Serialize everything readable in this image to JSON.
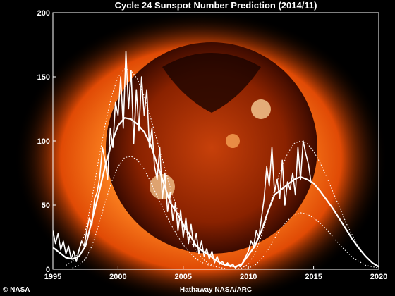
{
  "chart_data": {
    "type": "line",
    "title": "Cycle 24 Sunspot Number Prediction (2014/11)",
    "xlabel": "",
    "ylabel": "",
    "xlim": [
      1995,
      2020
    ],
    "ylim": [
      0,
      200
    ],
    "x_ticks": [
      "1995",
      "2000",
      "2005",
      "2010",
      "2015",
      "2020"
    ],
    "y_ticks": [
      "0",
      "50",
      "100",
      "150",
      "200"
    ],
    "grid": false,
    "series": [
      {
        "role": "monthly-observed",
        "color": "#ffffff",
        "x": [
          1995.0,
          1995.2,
          1995.4,
          1995.6,
          1995.8,
          1996.0,
          1996.2,
          1996.4,
          1996.6,
          1996.8,
          1997.0,
          1997.2,
          1997.4,
          1997.6,
          1997.8,
          1998.0,
          1998.2,
          1998.4,
          1998.6,
          1998.8,
          1999.0,
          1999.2,
          1999.4,
          1999.6,
          1999.8,
          2000.0,
          2000.2,
          2000.4,
          2000.6,
          2000.8,
          2001.0,
          2001.2,
          2001.4,
          2001.6,
          2001.8,
          2002.0,
          2002.2,
          2002.4,
          2002.6,
          2002.8,
          2003.0,
          2003.2,
          2003.4,
          2003.6,
          2003.8,
          2004.0,
          2004.2,
          2004.4,
          2004.6,
          2004.8,
          2005.0,
          2005.2,
          2005.4,
          2005.6,
          2005.8,
          2006.0,
          2006.2,
          2006.4,
          2006.6,
          2006.8,
          2007.0,
          2007.2,
          2007.4,
          2007.6,
          2007.8,
          2008.0,
          2008.2,
          2008.4,
          2008.6,
          2008.8,
          2009.0,
          2009.2,
          2009.4,
          2009.6,
          2009.8,
          2010.0,
          2010.2,
          2010.4,
          2010.6,
          2010.8,
          2011.0,
          2011.2,
          2011.4,
          2011.6,
          2011.8,
          2012.0,
          2012.2,
          2012.4,
          2012.6,
          2012.8,
          2013.0,
          2013.2,
          2013.4,
          2013.6,
          2013.8,
          2014.0,
          2014.2,
          2014.4,
          2014.6,
          2014.8
        ],
        "values": [
          30,
          20,
          28,
          15,
          22,
          12,
          18,
          8,
          14,
          6,
          15,
          22,
          18,
          30,
          40,
          35,
          55,
          60,
          72,
          95,
          85,
          70,
          110,
          95,
          130,
          120,
          150,
          110,
          170,
          125,
          155,
          98,
          140,
          108,
          150,
          120,
          140,
          95,
          110,
          80,
          70,
          95,
          55,
          75,
          45,
          60,
          38,
          52,
          30,
          46,
          25,
          40,
          20,
          35,
          18,
          28,
          12,
          22,
          10,
          16,
          8,
          14,
          5,
          10,
          4,
          6,
          3,
          5,
          2,
          4,
          1,
          3,
          2,
          6,
          10,
          14,
          22,
          18,
          30,
          25,
          40,
          55,
          80,
          65,
          95,
          60,
          70,
          55,
          85,
          50,
          68,
          62,
          75,
          58,
          95,
          70,
          100,
          90,
          82,
          68
        ]
      },
      {
        "role": "smoothed-observed",
        "color": "#ffffff",
        "x": [
          1995.0,
          1995.5,
          1996.0,
          1996.5,
          1997.0,
          1997.5,
          1998.0,
          1998.5,
          1999.0,
          1999.5,
          2000.0,
          2000.5,
          2001.0,
          2001.5,
          2002.0,
          2002.5,
          2003.0,
          2003.5,
          2004.0,
          2004.5,
          2005.0,
          2005.5,
          2006.0,
          2006.5,
          2007.0,
          2007.5,
          2008.0,
          2008.5,
          2009.0,
          2009.5,
          2010.0,
          2010.5,
          2011.0,
          2011.5,
          2012.0,
          2012.5,
          2013.0,
          2013.5,
          2014.0
        ],
        "values": [
          17,
          13,
          9,
          8,
          10,
          18,
          38,
          58,
          80,
          98,
          112,
          118,
          117,
          113,
          107,
          97,
          82,
          67,
          52,
          44,
          35,
          27,
          18,
          14,
          11,
          7,
          4,
          3,
          2,
          4,
          11,
          18,
          30,
          45,
          58,
          62,
          66,
          70,
          72
        ]
      },
      {
        "role": "prediction",
        "color": "#ffffff",
        "x": [
          2014.0,
          2014.5,
          2015.0,
          2015.5,
          2016.0,
          2016.5,
          2017.0,
          2017.5,
          2018.0,
          2018.5,
          2019.0,
          2019.5,
          2020.0
        ],
        "values": [
          72,
          70,
          67,
          61,
          54,
          47,
          39,
          31,
          23,
          16,
          10,
          5,
          2
        ]
      },
      {
        "role": "cycle23-envelope-upper",
        "color": "#ffffff",
        "x": [
          1996.0,
          1996.5,
          1997.0,
          1997.5,
          1998.0,
          1998.5,
          1999.0,
          1999.5,
          2000.0,
          2000.5,
          2001.0,
          2001.5,
          2002.0,
          2002.5,
          2003.0,
          2003.5,
          2004.0,
          2004.5,
          2005.0,
          2005.5,
          2006.0,
          2006.5,
          2007.0,
          2007.5,
          2008.0
        ],
        "values": [
          3,
          6,
          14,
          30,
          55,
          85,
          112,
          135,
          150,
          156,
          155,
          148,
          135,
          118,
          100,
          82,
          64,
          48,
          34,
          23,
          14,
          8,
          4,
          2,
          1
        ]
      },
      {
        "role": "cycle23-envelope-lower",
        "color": "#ffffff",
        "x": [
          1996.5,
          1997.0,
          1997.5,
          1998.0,
          1998.5,
          1999.0,
          1999.5,
          2000.0,
          2000.5,
          2001.0,
          2001.5,
          2002.0,
          2002.5,
          2003.0,
          2003.5,
          2004.0,
          2004.5,
          2005.0,
          2005.5,
          2006.0,
          2006.5,
          2007.0,
          2007.5,
          2008.0,
          2008.5,
          2009.0
        ],
        "values": [
          1,
          3,
          8,
          18,
          34,
          52,
          68,
          80,
          87,
          88,
          85,
          78,
          68,
          57,
          46,
          36,
          27,
          19,
          13,
          8,
          5,
          3,
          2,
          1,
          0,
          0
        ]
      },
      {
        "role": "cycle24-envelope-upper",
        "color": "#ffffff",
        "x": [
          2009.0,
          2009.5,
          2010.0,
          2010.5,
          2011.0,
          2011.5,
          2012.0,
          2012.5,
          2013.0,
          2013.5,
          2014.0,
          2014.5,
          2015.0,
          2015.5,
          2016.0,
          2016.5,
          2017.0,
          2017.5,
          2018.0,
          2018.5,
          2019.0,
          2019.5,
          2020.0
        ],
        "values": [
          0,
          1,
          4,
          12,
          26,
          44,
          62,
          78,
          90,
          98,
          100,
          98,
          92,
          83,
          72,
          60,
          48,
          36,
          26,
          17,
          10,
          5,
          2
        ]
      },
      {
        "role": "cycle24-envelope-lower",
        "color": "#ffffff",
        "x": [
          2009.5,
          2010.0,
          2010.5,
          2011.0,
          2011.5,
          2012.0,
          2012.5,
          2013.0,
          2013.5,
          2014.0,
          2014.5,
          2015.0,
          2015.5,
          2016.0,
          2016.5,
          2017.0,
          2017.5,
          2018.0,
          2018.5,
          2019.0,
          2019.5,
          2020.0
        ],
        "values": [
          0,
          1,
          3,
          8,
          15,
          24,
          32,
          38,
          42,
          44,
          43,
          40,
          36,
          31,
          25,
          19,
          14,
          9,
          6,
          3,
          2,
          1
        ]
      }
    ]
  },
  "credits": {
    "left": "© NASA",
    "center": "Hathaway  NASA/ARC"
  },
  "colors": {
    "background": "#000000",
    "sun_glow": "#ff7a1a",
    "sun_core": "#8a1e00",
    "ink": "#ffffff"
  }
}
